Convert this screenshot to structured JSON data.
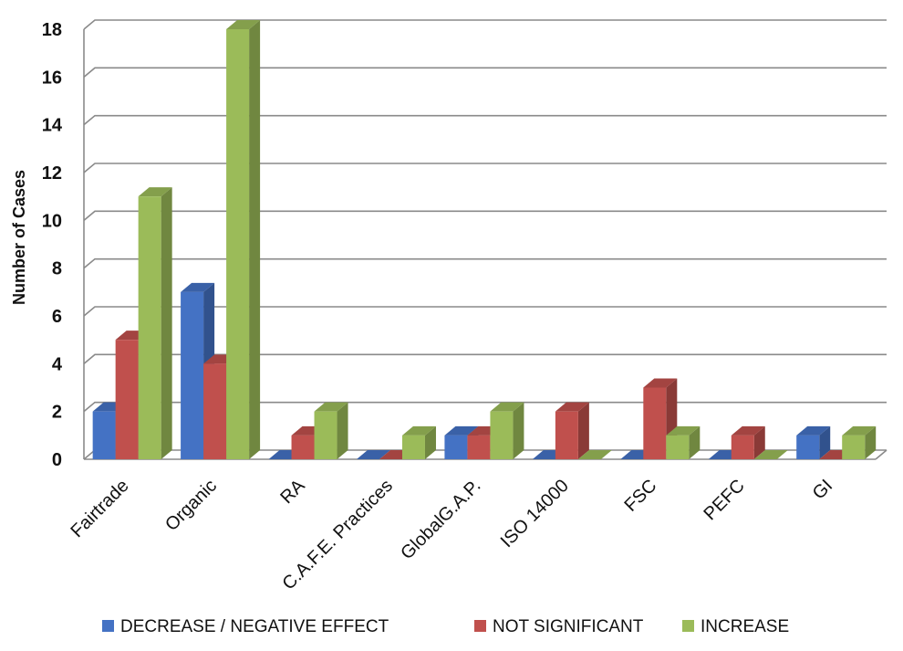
{
  "chart_data": {
    "type": "bar",
    "ylabel": "Number of Cases",
    "xlabel": "",
    "ylim": [
      0,
      18
    ],
    "yticks": [
      0,
      2,
      4,
      6,
      8,
      10,
      12,
      14,
      16,
      18
    ],
    "grid": true,
    "legend_position": "bottom",
    "categories": [
      "Fairtrade",
      "Organic",
      "RA",
      "C.A.F.E. Practices",
      "GlobalG.A.P.",
      "ISO 14000",
      "FSC",
      "PEFC",
      "GI"
    ],
    "series": [
      {
        "name": "DECREASE / NEGATIVE EFFECT",
        "color": "#4472C4",
        "values": [
          2,
          7,
          0,
          0,
          1,
          0,
          0,
          0,
          1
        ]
      },
      {
        "name": "NOT SIGNIFICANT",
        "color": "#C0504D",
        "values": [
          5,
          4,
          1,
          0,
          1,
          2,
          3,
          1,
          0
        ]
      },
      {
        "name": "INCREASE",
        "color": "#9BBB59",
        "values": [
          11,
          18,
          2,
          1,
          2,
          0,
          1,
          0,
          1
        ]
      }
    ]
  }
}
